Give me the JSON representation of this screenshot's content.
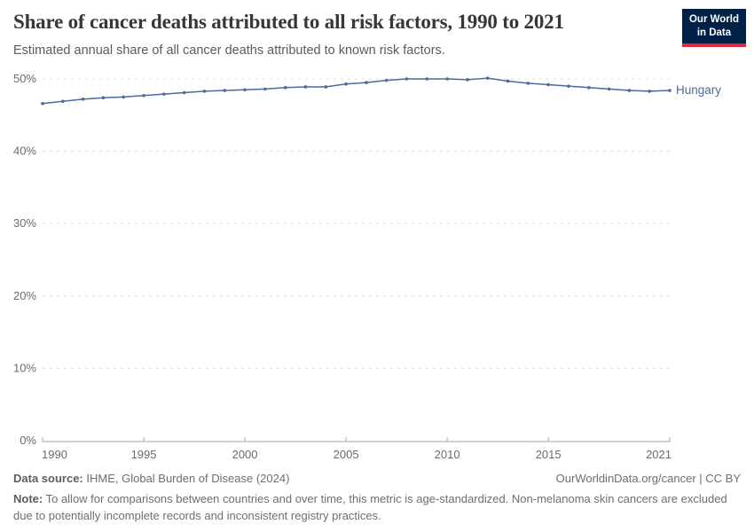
{
  "header": {
    "title": "Share of cancer deaths attributed to all risk factors, 1990 to 2021",
    "subtitle": "Estimated annual share of all cancer deaths attributed to known risk factors.",
    "logo": {
      "line1": "Our World",
      "line2": "in Data"
    }
  },
  "chart_data": {
    "type": "line",
    "title": "Share of cancer deaths attributed to all risk factors, 1990 to 2021",
    "x": [
      1990,
      1991,
      1992,
      1993,
      1994,
      1995,
      1996,
      1997,
      1998,
      1999,
      2000,
      2001,
      2002,
      2003,
      2004,
      2005,
      2006,
      2007,
      2008,
      2009,
      2010,
      2011,
      2012,
      2013,
      2014,
      2015,
      2016,
      2017,
      2018,
      2019,
      2020,
      2021
    ],
    "series": [
      {
        "name": "Hungary",
        "color": "#4c6a9c",
        "values": [
          46.6,
          46.9,
          47.2,
          47.4,
          47.5,
          47.7,
          47.9,
          48.1,
          48.3,
          48.4,
          48.5,
          48.6,
          48.8,
          48.9,
          48.9,
          49.3,
          49.5,
          49.8,
          50.0,
          50.0,
          50.0,
          49.9,
          50.1,
          49.7,
          49.4,
          49.2,
          49.0,
          48.8,
          48.6,
          48.4,
          48.3,
          48.4
        ]
      }
    ],
    "ylim": [
      0,
      50
    ],
    "y_ticks": [
      0,
      10,
      20,
      30,
      40,
      50
    ],
    "y_tick_suffix": "%",
    "x_ticks": [
      1990,
      1995,
      2000,
      2005,
      2010,
      2015,
      2021
    ],
    "grid": "horizontal-dashed",
    "legend_position": "line-end-label",
    "xlabel": "",
    "ylabel": ""
  },
  "footer": {
    "datasource_label": "Data source:",
    "datasource_text": " IHME, Global Burden of Disease (2024)",
    "rights": "OurWorldinData.org/cancer | CC BY",
    "note_label": "Note:",
    "note_text": " To allow for comparisons between countries and over time, this metric is age-standardized. Non-melanoma skin cancers are excluded due to potentially incomplete records and inconsistent registry practices."
  },
  "colors": {
    "accent_line": "#4c6a9c",
    "logo_bg": "#002147",
    "logo_bar": "#dd2a3c",
    "grid": "#dcdcdc",
    "axis": "#a6a6a6",
    "tick_text": "#6b6b6b"
  }
}
